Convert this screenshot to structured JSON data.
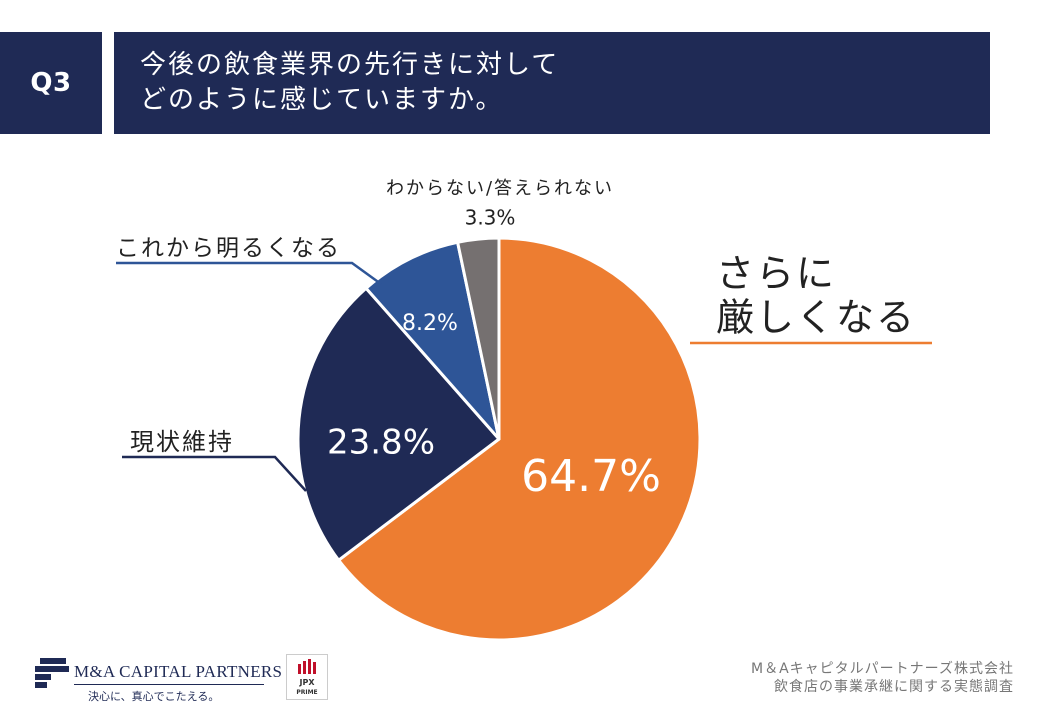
{
  "question": {
    "badge": "Q3",
    "line1": "今後の飲食業界の先行きに対して",
    "line2": "どのように感じていますか。"
  },
  "chart_data": {
    "type": "pie",
    "title": "今後の飲食業界の先行きに対してどのように感じていますか。",
    "slices": [
      {
        "label": "さらに厳しくなる",
        "label_lines": [
          "さらに",
          "厳しくなる"
        ],
        "value": 64.7,
        "value_text": "64.7%",
        "color": "#ed7d31"
      },
      {
        "label": "現状維持",
        "label_lines": [
          "現状維持"
        ],
        "value": 23.8,
        "value_text": "23.8%",
        "color": "#1f2a55"
      },
      {
        "label": "これから明るくなる",
        "label_lines": [
          "これから明るくなる"
        ],
        "value": 8.2,
        "value_text": "8.2%",
        "color": "#2e5597"
      },
      {
        "label": "わからない/答えられない",
        "label_lines": [
          "わからない/答えられない"
        ],
        "value": 3.3,
        "value_text": "3.3%",
        "color": "#757070"
      }
    ]
  },
  "footer": {
    "source_line1": "M＆Aキャピタルパートナーズ株式会社",
    "source_line2": "飲食店の事業承継に関する実態調査"
  },
  "logo": {
    "name": "M&A CAPITAL PARTNERS",
    "tagline": "決心に、真心でこたえる。",
    "jpx_line1": "JPX",
    "jpx_line2": "PRIME"
  },
  "colors": {
    "navy": "#1f2a55",
    "orange": "#ed7d31",
    "blue": "#2e5597",
    "gray": "#757070"
  }
}
